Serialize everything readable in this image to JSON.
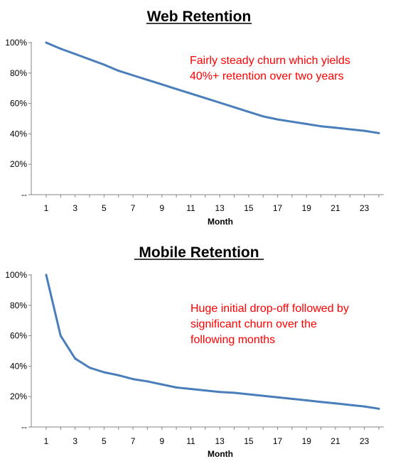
{
  "chart_data": [
    {
      "type": "line",
      "title": "Web Retention",
      "xlabel": "Month",
      "ylabel": "",
      "xlim": [
        1,
        24
      ],
      "ylim": [
        0,
        100
      ],
      "yticks": [
        0,
        20,
        40,
        60,
        80,
        100
      ],
      "ytick_labels": [
        "--",
        "20%",
        "40%",
        "60%",
        "80%",
        "100%"
      ],
      "xticks": [
        1,
        3,
        5,
        7,
        9,
        11,
        13,
        15,
        17,
        19,
        21,
        23
      ],
      "xtick_labels": [
        "1",
        "3",
        "5",
        "7",
        "9",
        "11",
        "13",
        "15",
        "17",
        "19",
        "21",
        "23"
      ],
      "grid": false,
      "series": [
        {
          "color": "#4a7ebb",
          "x": [
            1,
            2,
            3,
            4,
            5,
            6,
            7,
            8,
            9,
            10,
            11,
            12,
            13,
            14,
            15,
            16,
            17,
            18,
            19,
            20,
            21,
            22,
            23,
            24
          ],
          "values": [
            100,
            96,
            92.5,
            89,
            85.5,
            81.5,
            78.5,
            75.5,
            72.5,
            69.5,
            66.5,
            63.5,
            60.5,
            57.5,
            54.5,
            51.5,
            49.5,
            48,
            46.5,
            45,
            44,
            43,
            42,
            40.5
          ]
        }
      ],
      "annotation": {
        "lines": [
          "Fairly steady churn which yields",
          "40%+ retention over two years"
        ],
        "color": "#ff0000"
      }
    },
    {
      "type": "line",
      "title": "Mobile Retention",
      "xlabel": "Month",
      "ylabel": "",
      "xlim": [
        1,
        24
      ],
      "ylim": [
        0,
        100
      ],
      "yticks": [
        0,
        20,
        40,
        60,
        80,
        100
      ],
      "ytick_labels": [
        "--",
        "20%",
        "40%",
        "60%",
        "80%",
        "100%"
      ],
      "xticks": [
        1,
        3,
        5,
        7,
        9,
        11,
        13,
        15,
        17,
        19,
        21,
        23
      ],
      "xtick_labels": [
        "1",
        "3",
        "5",
        "7",
        "9",
        "11",
        "13",
        "15",
        "17",
        "19",
        "21",
        "23"
      ],
      "grid": false,
      "series": [
        {
          "color": "#4a7ebb",
          "x": [
            1,
            2,
            3,
            4,
            5,
            6,
            7,
            8,
            9,
            10,
            11,
            12,
            13,
            14,
            15,
            16,
            17,
            18,
            19,
            20,
            21,
            22,
            23,
            24
          ],
          "values": [
            100,
            60,
            45,
            39,
            36,
            34,
            31.5,
            30,
            28,
            26,
            25,
            24,
            23,
            22.5,
            21.5,
            20.5,
            19.5,
            18.5,
            17.5,
            16.5,
            15.5,
            14.5,
            13.5,
            12
          ]
        }
      ],
      "annotation": {
        "lines": [
          "Huge initial drop-off followed by",
          "significant churn over the",
          "following months"
        ],
        "color": "#ff0000"
      }
    }
  ]
}
